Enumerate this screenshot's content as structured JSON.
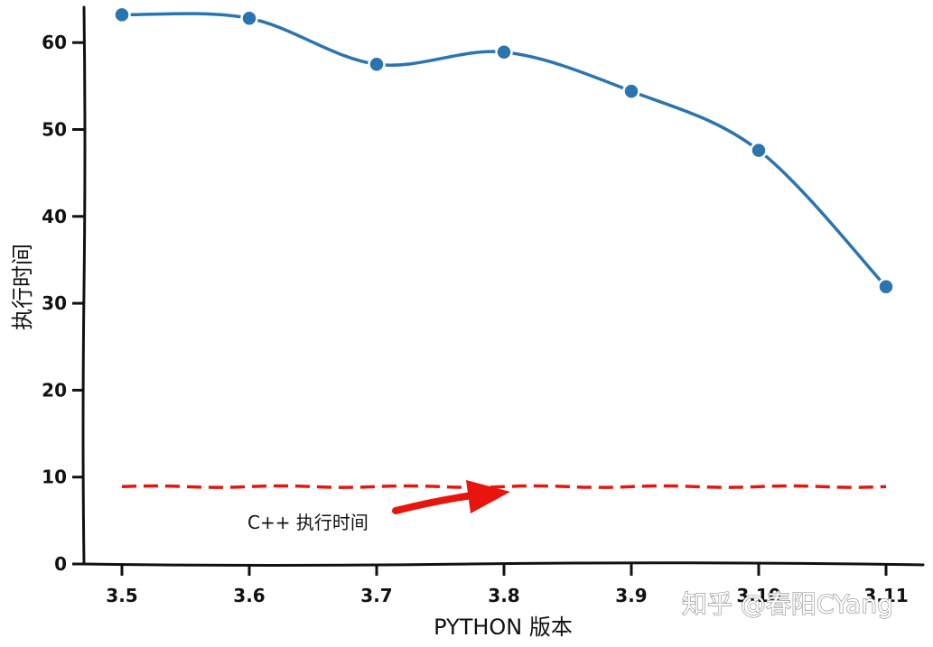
{
  "chart_data": {
    "type": "line",
    "categories": [
      "3.5",
      "3.6",
      "3.7",
      "3.8",
      "3.9",
      "3.10",
      "3.11"
    ],
    "series": [
      {
        "values": [
          63.2,
          62.8,
          57.5,
          58.9,
          54.4,
          47.6,
          31.9
        ],
        "color": "#2a74b0"
      }
    ],
    "reference_line": {
      "value": 8.9,
      "color": "#e8150f",
      "style": "dashed"
    },
    "annotation": {
      "text": "C++ 执行时间",
      "arrow_color": "#e8150f"
    },
    "xlabel": "PYTHON 版本",
    "ylabel": "执行时间",
    "yticks": [
      0,
      10,
      20,
      30,
      40,
      50,
      60
    ],
    "ylim": [
      0,
      64.5
    ],
    "grid": false,
    "legend": "none"
  },
  "watermark": "知乎 @春阳CYang"
}
